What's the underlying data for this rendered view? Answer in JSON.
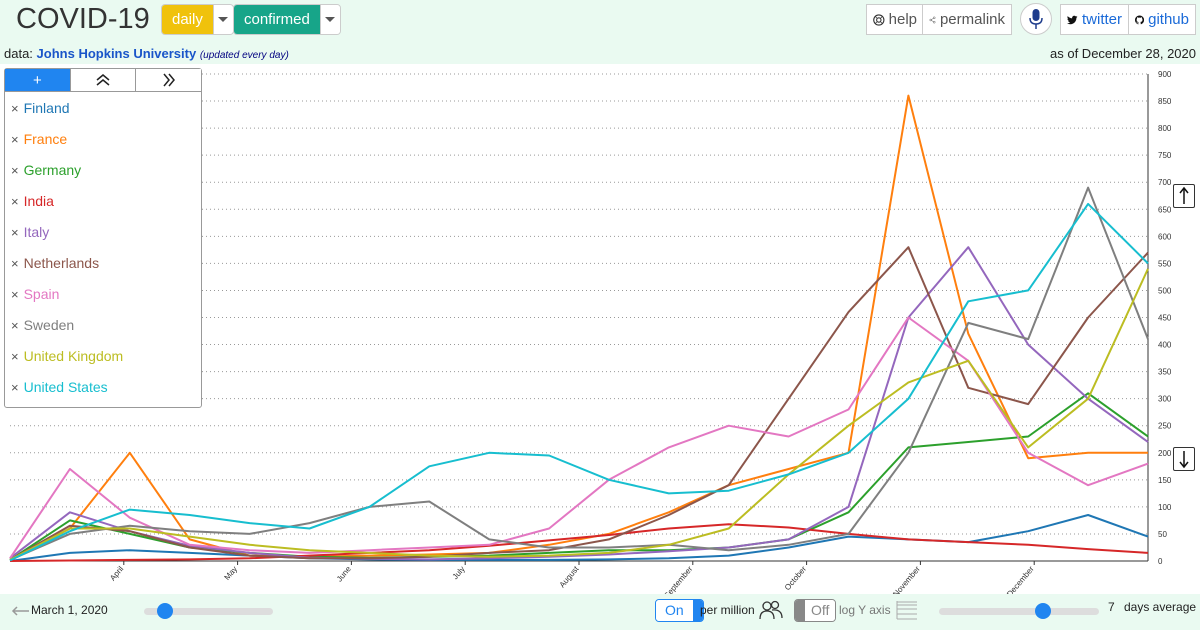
{
  "app": {
    "title": "COVID-19",
    "metric_dropdown": "daily",
    "type_dropdown": "confirmed",
    "help_label": "help",
    "permalink_label": "permalink",
    "twitter_label": "twitter",
    "github_label": "github",
    "data_prefix": "data:",
    "data_source": "Johns Hopkins University",
    "data_note": "(updated every day)",
    "as_of": "as of December 28, 2020"
  },
  "colors": {
    "daily": "#f0c20c",
    "confirmed": "#17a589",
    "accent": "#2085f0"
  },
  "legend": {
    "tabs": [
      "+",
      "chevrons-up-icon",
      "chevrons-right-icon"
    ],
    "items": [
      {
        "label": "Finland",
        "color": "#1f77b4"
      },
      {
        "label": "France",
        "color": "#ff7f0e"
      },
      {
        "label": "Germany",
        "color": "#2ca02c"
      },
      {
        "label": "India",
        "color": "#d62728"
      },
      {
        "label": "Italy",
        "color": "#9467bd"
      },
      {
        "label": "Netherlands",
        "color": "#8c564b"
      },
      {
        "label": "Spain",
        "color": "#e377c2"
      },
      {
        "label": "Sweden",
        "color": "#7f7f7f"
      },
      {
        "label": "United Kingdom",
        "color": "#bcbd22"
      },
      {
        "label": "United States",
        "color": "#17becf"
      }
    ]
  },
  "footer": {
    "start_date": "March 1, 2020",
    "per_million_state": "On",
    "per_million_label": "per million",
    "log_state": "Off",
    "log_label": "log Y axis",
    "avg_days": "7",
    "avg_label": "days average"
  },
  "chart_data": {
    "type": "line",
    "title": "",
    "xlabel": "",
    "ylabel": "",
    "ylim": [
      0,
      900
    ],
    "yticks": [
      0,
      50,
      100,
      150,
      200,
      250,
      300,
      350,
      400,
      450,
      500,
      550,
      600,
      650,
      700,
      750,
      800,
      850,
      900
    ],
    "x": [
      "Mar 1",
      "Apr 1",
      "Apr 15",
      "May 1",
      "May 15",
      "Jun 1",
      "Jun 15",
      "Jul 1",
      "Jul 15",
      "Aug 1",
      "Aug 15",
      "Sep 1",
      "Sep 15",
      "Oct 1",
      "Oct 15",
      "Nov 1",
      "Nov 15",
      "Dec 1",
      "Dec 15",
      "Dec 28"
    ],
    "xtick_labels": [
      "April",
      "May",
      "June",
      "July",
      "August",
      "September",
      "October",
      "November",
      "December"
    ],
    "series": [
      {
        "name": "Finland",
        "values": [
          0,
          15,
          20,
          15,
          10,
          5,
          3,
          2,
          2,
          2,
          3,
          5,
          10,
          25,
          45,
          40,
          35,
          55,
          85,
          45
        ]
      },
      {
        "name": "France",
        "values": [
          2,
          60,
          200,
          40,
          10,
          8,
          10,
          12,
          15,
          30,
          50,
          90,
          140,
          170,
          200,
          860,
          420,
          190,
          200,
          200
        ]
      },
      {
        "name": "Germany",
        "values": [
          2,
          75,
          50,
          25,
          15,
          8,
          6,
          8,
          10,
          15,
          20,
          20,
          25,
          40,
          90,
          210,
          220,
          230,
          310,
          230
        ]
      },
      {
        "name": "India",
        "values": [
          0,
          1,
          2,
          3,
          5,
          10,
          15,
          20,
          28,
          38,
          48,
          60,
          68,
          62,
          50,
          40,
          35,
          30,
          22,
          15
        ]
      },
      {
        "name": "Italy",
        "values": [
          5,
          90,
          55,
          28,
          15,
          6,
          4,
          3,
          5,
          8,
          12,
          18,
          25,
          40,
          100,
          450,
          580,
          400,
          300,
          220
        ]
      },
      {
        "name": "Netherlands",
        "values": [
          2,
          65,
          55,
          25,
          10,
          5,
          5,
          8,
          15,
          20,
          40,
          85,
          140,
          300,
          460,
          580,
          320,
          290,
          450,
          570
        ]
      },
      {
        "name": "Spain",
        "values": [
          5,
          170,
          80,
          30,
          20,
          15,
          20,
          25,
          30,
          60,
          150,
          210,
          250,
          230,
          280,
          450,
          370,
          200,
          140,
          180
        ]
      },
      {
        "name": "Sweden",
        "values": [
          2,
          50,
          65,
          55,
          50,
          70,
          100,
          110,
          40,
          25,
          25,
          30,
          20,
          30,
          50,
          200,
          440,
          410,
          690,
          410
        ]
      },
      {
        "name": "United Kingdom",
        "values": [
          2,
          60,
          60,
          45,
          30,
          20,
          15,
          10,
          8,
          10,
          15,
          30,
          60,
          160,
          250,
          330,
          370,
          210,
          300,
          540
        ]
      },
      {
        "name": "United States",
        "values": [
          1,
          55,
          95,
          85,
          70,
          60,
          100,
          175,
          200,
          195,
          150,
          125,
          130,
          160,
          200,
          300,
          480,
          500,
          660,
          550
        ]
      }
    ],
    "legend": "top-left",
    "grid": true
  }
}
